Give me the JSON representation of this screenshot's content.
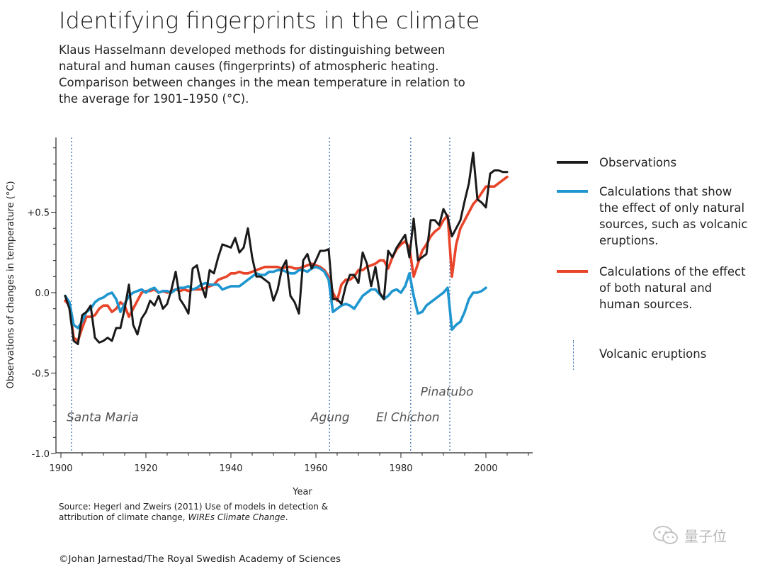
{
  "title": "Identifying fingerprints in the climate",
  "subtitle_lines": [
    "Klaus Hasselmann developed methods for distinguishing between",
    "natural and human causes (fingerprints) of atmospheric heating.",
    "Comparison between changes in the mean temperature in relation to",
    "the average for 1901–1950 (°C)."
  ],
  "legend": {
    "observations": "Observations",
    "natural": "Calculations that show the effect of only natural sources, such as volcanic eruptions.",
    "combined": "Calculations of the effect of both natural and human sources.",
    "volcanic": "Volcanic eruptions"
  },
  "colors": {
    "observations": "#1a1a1a",
    "natural": "#1f96cf",
    "combined": "#e8452a",
    "volcanic": "#3b6fb6",
    "axis": "#222222"
  },
  "source": {
    "prefix": "Source: Hegerl and Zweirs (2011) Use of models in detection &",
    "line2_prefix": "attribution of climate change, ",
    "journal": "WIREs Climate Change",
    "line2_suffix": "."
  },
  "copyright": "©Johan Jarnestad/The Royal Swedish Academy of Sciences",
  "watermark": "量子位",
  "chart_data": {
    "type": "line",
    "title": "Identifying fingerprints in the climate",
    "xlabel": "Year",
    "ylabel": "Observations of changes in temperature (°C)",
    "xlim": [
      1900,
      2010
    ],
    "ylim": [
      -1.0,
      0.95
    ],
    "x_ticks": [
      1900,
      1920,
      1940,
      1960,
      1980,
      2000
    ],
    "y_ticks": [
      {
        "value": 0.5,
        "label": "+0.5"
      },
      {
        "value": 0.0,
        "label": "0.0"
      },
      {
        "value": -0.5,
        "label": "-0.5"
      },
      {
        "value": -1.0,
        "label": "-1.0"
      }
    ],
    "volcanic_eruptions": [
      {
        "year": 1902.5,
        "name": "Santa Maria",
        "label_y": -0.8
      },
      {
        "year": 1963.2,
        "name": "Agung",
        "label_y": -0.8
      },
      {
        "year": 1982.3,
        "name": "El Chichon",
        "label_y": -0.8
      },
      {
        "year": 1991.5,
        "name": "Pinatubo",
        "label_y": -0.64
      }
    ],
    "series": [
      {
        "name": "Calculations of the effect of both natural and human sources.",
        "key": "combined",
        "x": [
          1901,
          1902,
          1903,
          1904,
          1905,
          1906,
          1907,
          1908,
          1909,
          1910,
          1911,
          1912,
          1913,
          1914,
          1915,
          1916,
          1917,
          1918,
          1919,
          1920,
          1921,
          1922,
          1923,
          1924,
          1925,
          1926,
          1927,
          1928,
          1929,
          1930,
          1931,
          1932,
          1933,
          1934,
          1935,
          1936,
          1937,
          1938,
          1939,
          1940,
          1941,
          1942,
          1943,
          1944,
          1945,
          1946,
          1947,
          1948,
          1949,
          1950,
          1951,
          1952,
          1953,
          1954,
          1955,
          1956,
          1957,
          1958,
          1959,
          1960,
          1961,
          1962,
          1963,
          1964,
          1965,
          1966,
          1967,
          1968,
          1969,
          1970,
          1971,
          1972,
          1973,
          1974,
          1975,
          1976,
          1977,
          1978,
          1979,
          1980,
          1981,
          1982,
          1983,
          1984,
          1985,
          1986,
          1987,
          1988,
          1989,
          1990,
          1991,
          1992,
          1993,
          1994,
          1995,
          1996,
          1997,
          1998,
          1999,
          2000,
          2001,
          2002,
          2003,
          2004,
          2005
        ],
        "values": [
          -0.05,
          -0.08,
          -0.28,
          -0.3,
          -0.22,
          -0.15,
          -0.15,
          -0.14,
          -0.1,
          -0.08,
          -0.08,
          -0.12,
          -0.1,
          -0.06,
          -0.08,
          -0.15,
          -0.1,
          -0.05,
          0.0,
          0.01,
          0.01,
          0.02,
          0.0,
          0.01,
          0.0,
          0.01,
          0.02,
          0.01,
          0.02,
          0.01,
          0.02,
          0.02,
          0.02,
          0.03,
          0.04,
          0.05,
          0.08,
          0.09,
          0.1,
          0.12,
          0.12,
          0.13,
          0.12,
          0.12,
          0.13,
          0.14,
          0.15,
          0.16,
          0.16,
          0.16,
          0.16,
          0.15,
          0.16,
          0.16,
          0.15,
          0.15,
          0.16,
          0.17,
          0.18,
          0.17,
          0.16,
          0.14,
          0.1,
          0.0,
          -0.05,
          0.05,
          0.08,
          0.08,
          0.1,
          0.14,
          0.14,
          0.16,
          0.17,
          0.18,
          0.2,
          0.2,
          0.15,
          0.22,
          0.27,
          0.3,
          0.32,
          0.28,
          0.1,
          0.18,
          0.26,
          0.3,
          0.35,
          0.38,
          0.4,
          0.45,
          0.48,
          0.1,
          0.3,
          0.4,
          0.45,
          0.5,
          0.55,
          0.58,
          0.62,
          0.66,
          0.66,
          0.66,
          0.68,
          0.7,
          0.72
        ]
      },
      {
        "name": "Calculations that show the effect of only natural sources, such as volcanic eruptions.",
        "key": "natural",
        "x": [
          1901,
          1902,
          1903,
          1904,
          1905,
          1906,
          1907,
          1908,
          1909,
          1910,
          1911,
          1912,
          1913,
          1914,
          1915,
          1916,
          1917,
          1918,
          1919,
          1920,
          1921,
          1922,
          1923,
          1924,
          1925,
          1926,
          1927,
          1928,
          1929,
          1930,
          1931,
          1932,
          1933,
          1934,
          1935,
          1936,
          1937,
          1938,
          1939,
          1940,
          1941,
          1942,
          1943,
          1944,
          1945,
          1946,
          1947,
          1948,
          1949,
          1950,
          1951,
          1952,
          1953,
          1954,
          1955,
          1956,
          1957,
          1958,
          1959,
          1960,
          1961,
          1962,
          1963,
          1964,
          1965,
          1966,
          1967,
          1968,
          1969,
          1970,
          1971,
          1972,
          1973,
          1974,
          1975,
          1976,
          1977,
          1978,
          1979,
          1980,
          1981,
          1982,
          1983,
          1984,
          1985,
          1986,
          1987,
          1988,
          1989,
          1990,
          1991,
          1992,
          1993,
          1994,
          1995,
          1996,
          1997,
          1998,
          1999,
          2000
        ],
        "values": [
          -0.02,
          -0.06,
          -0.2,
          -0.22,
          -0.18,
          -0.12,
          -0.1,
          -0.06,
          -0.04,
          -0.03,
          -0.01,
          0.0,
          -0.04,
          -0.12,
          -0.07,
          -0.02,
          0.0,
          0.01,
          0.02,
          0.0,
          0.02,
          0.03,
          0.0,
          0.01,
          0.01,
          0.0,
          0.02,
          0.03,
          0.03,
          0.04,
          0.02,
          0.03,
          0.05,
          0.06,
          0.05,
          0.05,
          0.05,
          0.02,
          0.03,
          0.04,
          0.04,
          0.04,
          0.06,
          0.08,
          0.1,
          0.12,
          0.11,
          0.11,
          0.13,
          0.13,
          0.14,
          0.14,
          0.13,
          0.12,
          0.12,
          0.14,
          0.14,
          0.13,
          0.15,
          0.16,
          0.15,
          0.13,
          0.08,
          -0.12,
          -0.1,
          -0.08,
          -0.07,
          -0.08,
          -0.1,
          -0.06,
          -0.02,
          0.0,
          0.02,
          0.02,
          -0.01,
          -0.04,
          -0.02,
          0.01,
          0.02,
          0.0,
          0.04,
          0.12,
          -0.02,
          -0.13,
          -0.12,
          -0.08,
          -0.06,
          -0.04,
          -0.02,
          0.0,
          0.03,
          -0.23,
          -0.2,
          -0.18,
          -0.12,
          -0.04,
          0.0,
          0.0,
          0.01,
          0.03
        ]
      },
      {
        "name": "Observations",
        "key": "observations",
        "x": [
          1901,
          1902,
          1903,
          1904,
          1905,
          1906,
          1907,
          1908,
          1909,
          1910,
          1911,
          1912,
          1913,
          1914,
          1915,
          1916,
          1917,
          1918,
          1919,
          1920,
          1921,
          1922,
          1923,
          1924,
          1925,
          1926,
          1927,
          1928,
          1929,
          1930,
          1931,
          1932,
          1933,
          1934,
          1935,
          1936,
          1937,
          1938,
          1939,
          1940,
          1941,
          1942,
          1943,
          1944,
          1945,
          1946,
          1947,
          1948,
          1949,
          1950,
          1951,
          1952,
          1953,
          1954,
          1955,
          1956,
          1957,
          1958,
          1959,
          1960,
          1961,
          1962,
          1963,
          1964,
          1965,
          1966,
          1967,
          1968,
          1969,
          1970,
          1971,
          1972,
          1973,
          1974,
          1975,
          1976,
          1977,
          1978,
          1979,
          1980,
          1981,
          1982,
          1983,
          1984,
          1985,
          1986,
          1987,
          1988,
          1989,
          1990,
          1991,
          1992,
          1993,
          1994,
          1995,
          1996,
          1997,
          1998,
          1999,
          2000,
          2001,
          2002,
          2003,
          2004,
          2005
        ],
        "values": [
          -0.02,
          -0.1,
          -0.3,
          -0.32,
          -0.14,
          -0.12,
          -0.08,
          -0.28,
          -0.31,
          -0.3,
          -0.28,
          -0.3,
          -0.22,
          -0.22,
          -0.1,
          0.05,
          -0.2,
          -0.26,
          -0.16,
          -0.12,
          -0.05,
          -0.08,
          -0.02,
          -0.1,
          -0.07,
          0.02,
          0.13,
          -0.04,
          -0.08,
          -0.13,
          0.15,
          0.17,
          0.05,
          -0.03,
          0.14,
          0.12,
          0.22,
          0.3,
          0.29,
          0.28,
          0.34,
          0.25,
          0.28,
          0.4,
          0.22,
          0.1,
          0.1,
          0.08,
          0.06,
          -0.05,
          0.02,
          0.15,
          0.2,
          -0.02,
          -0.06,
          -0.13,
          0.2,
          0.24,
          0.15,
          0.2,
          0.26,
          0.26,
          0.27,
          -0.04,
          -0.04,
          -0.07,
          0.04,
          0.11,
          0.11,
          0.06,
          0.25,
          0.18,
          0.04,
          0.16,
          0.0,
          -0.04,
          0.26,
          0.22,
          0.28,
          0.32,
          0.36,
          0.22,
          0.46,
          0.2,
          0.22,
          0.24,
          0.45,
          0.45,
          0.42,
          0.52,
          0.47,
          0.35,
          0.4,
          0.45,
          0.57,
          0.68,
          0.87,
          0.58,
          0.56,
          0.53,
          0.74,
          0.76,
          0.76,
          0.75,
          0.75
        ]
      }
    ]
  }
}
